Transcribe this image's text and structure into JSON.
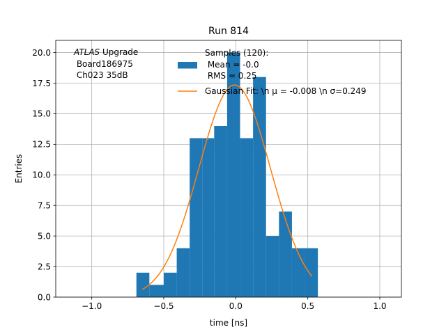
{
  "chart_data": {
    "type": "bar",
    "title": "Run 814",
    "xlabel": "time [ns]",
    "ylabel": "Entries",
    "xlim": [
      -1.25,
      1.15
    ],
    "ylim": [
      0,
      21.0
    ],
    "grid": true,
    "legend_position": "upper-right",
    "xticks": [
      -1.0,
      -0.5,
      0.0,
      0.5,
      1.0
    ],
    "xtick_labels": [
      "−1.0",
      "−0.5",
      "0.0",
      "0.5",
      "1.0"
    ],
    "yticks": [
      0.0,
      2.5,
      5.0,
      7.5,
      10.0,
      12.5,
      15.0,
      17.5,
      20.0
    ],
    "ytick_labels": [
      "0.0",
      "2.5",
      "5.0",
      "7.5",
      "10.0",
      "12.5",
      "15.0",
      "17.5",
      "20.0"
    ],
    "histogram": {
      "name_lines": [
        "Samples (120):",
        " Mean = -0.0",
        " RMS = 0.25"
      ],
      "color": "#1f77b4",
      "bin_edges": [
        -0.69,
        -0.6,
        -0.5,
        -0.41,
        -0.32,
        -0.23,
        -0.15,
        -0.06,
        0.03,
        0.12,
        0.21,
        0.3,
        0.39,
        0.48,
        0.57
      ],
      "counts": [
        2,
        1,
        2,
        4,
        13,
        13,
        14,
        20,
        13,
        18,
        5,
        7,
        4,
        4
      ]
    },
    "fit": {
      "name": "Gaussian Fit: \\n $\\mu$ = -0.008 \\n $\\sigma$=0.249",
      "color": "#ff7f0e",
      "amplitude": 17.35,
      "mu": -0.008,
      "sigma": 0.249,
      "x_range": [
        -0.65,
        0.53
      ]
    },
    "annotation": {
      "lines": [
        "ATLAS Upgrade",
        " Board186975",
        " Ch023 35dB"
      ],
      "italic_word": "ATLAS"
    }
  },
  "legend": {
    "line1": "Samples (120):",
    "line2": " Mean = -0.0",
    "line3": " RMS = 0.25",
    "fit_label": "Gaussian Fit: \\n μ = -0.008 \\n σ=0.249"
  }
}
